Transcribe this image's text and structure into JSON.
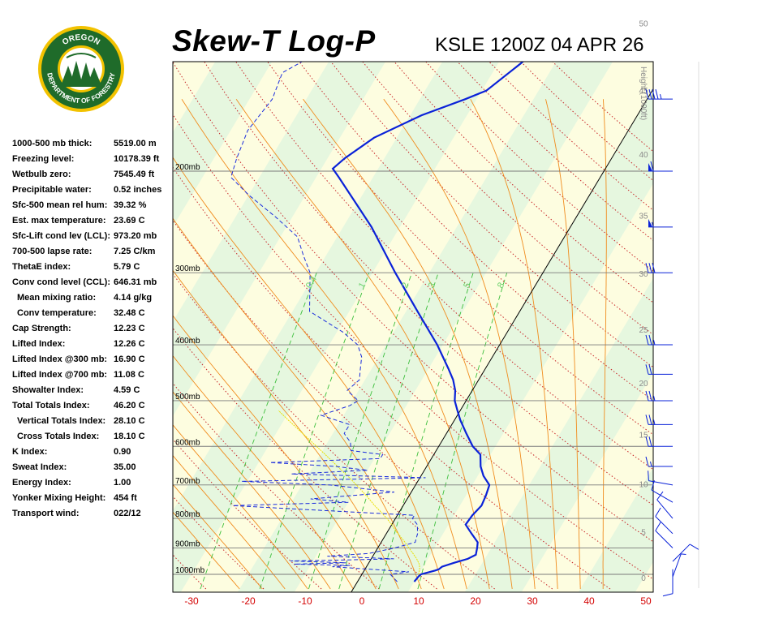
{
  "header": {
    "title": "Skew-T Log-P",
    "subtitle": "KSLE 1200Z 04 APR 26"
  },
  "logo": {
    "text_top": "OREGON",
    "text_bottom": "DEPARTMENT OF FORESTRY",
    "ring_color": "#1f6b2a",
    "accent_color": "#f2c200"
  },
  "indices": [
    {
      "label": "1000-500 mb thick:",
      "value": "5519.00 m",
      "indent": false
    },
    {
      "label": "Freezing level:",
      "value": "10178.39 ft",
      "indent": false
    },
    {
      "label": "Wetbulb zero:",
      "value": "7545.49 ft",
      "indent": false
    },
    {
      "label": "Precipitable water:",
      "value": "0.52 inches",
      "indent": false
    },
    {
      "label": "Sfc-500 mean rel hum:",
      "value": "39.32 %",
      "indent": false
    },
    {
      "label": "Est. max temperature:",
      "value": "23.69 C",
      "indent": false
    },
    {
      "label": "Sfc-Lift cond lev (LCL):",
      "value": "973.20 mb",
      "indent": false
    },
    {
      "label": "700-500 lapse rate:",
      "value": "7.25 C/km",
      "indent": false
    },
    {
      "label": "ThetaE index:",
      "value": "5.79 C",
      "indent": false
    },
    {
      "label": "Conv cond level (CCL):",
      "value": "646.31 mb",
      "indent": false
    },
    {
      "label": "Mean mixing ratio:",
      "value": "4.14 g/kg",
      "indent": true
    },
    {
      "label": "Conv temperature:",
      "value": "32.48 C",
      "indent": true
    },
    {
      "label": "Cap Strength:",
      "value": "12.23 C",
      "indent": false
    },
    {
      "label": "Lifted Index:",
      "value": "12.26 C",
      "indent": false
    },
    {
      "label": "Lifted Index @300 mb:",
      "value": "16.90 C",
      "indent": false
    },
    {
      "label": "Lifted Index @700 mb:",
      "value": "11.08 C",
      "indent": false
    },
    {
      "label": "Showalter Index:",
      "value": "4.59 C",
      "indent": false
    },
    {
      "label": "Total Totals Index:",
      "value": "46.20 C",
      "indent": false
    },
    {
      "label": "Vertical Totals Index:",
      "value": "28.10 C",
      "indent": true
    },
    {
      "label": "Cross Totals Index:",
      "value": "18.10 C",
      "indent": true
    },
    {
      "label": "K Index:",
      "value": "0.90",
      "indent": false
    },
    {
      "label": "Sweat Index:",
      "value": "35.00",
      "indent": false
    },
    {
      "label": "Energy Index:",
      "value": "1.00",
      "indent": false
    },
    {
      "label": "Yonker Mixing Height:",
      "value": "454 ft",
      "indent": false
    },
    {
      "label": "Transport wind:",
      "value": "022/12",
      "indent": false
    }
  ],
  "chart_data": {
    "type": "skew-t",
    "x_ticks": [
      "-30",
      "-20",
      "-10",
      "0",
      "10",
      "20",
      "30",
      "40",
      "50"
    ],
    "x_tick_values": [
      -30,
      -20,
      -10,
      0,
      10,
      20,
      30,
      40,
      50
    ],
    "pressure_levels": [
      {
        "p": 200,
        "label": "200mb"
      },
      {
        "p": 300,
        "label": "300mb"
      },
      {
        "p": 400,
        "label": "400mb"
      },
      {
        "p": 500,
        "label": "500mb"
      },
      {
        "p": 600,
        "label": "600mb"
      },
      {
        "p": 700,
        "label": "700mb"
      },
      {
        "p": 800,
        "label": "800mb"
      },
      {
        "p": 900,
        "label": "900mb"
      },
      {
        "p": 1000,
        "label": "1000mb"
      }
    ],
    "height_axis_label": "Height (1000ft)",
    "height_ticks": [
      {
        "kft": 0,
        "label": "0"
      },
      {
        "kft": 5,
        "label": "5"
      },
      {
        "kft": 10,
        "label": "10"
      },
      {
        "kft": 15,
        "label": "15"
      },
      {
        "kft": 20,
        "label": "20"
      },
      {
        "kft": 25,
        "label": "25"
      },
      {
        "kft": 30,
        "label": "30"
      },
      {
        "kft": 35,
        "label": "35"
      },
      {
        "kft": 40,
        "label": "40"
      },
      {
        "kft": 45,
        "label": "45"
      },
      {
        "kft": 50,
        "label": "50"
      }
    ],
    "mixing_ratio_labels": [
      "0.4",
      "1",
      "2",
      "3",
      "5",
      "8"
    ],
    "temperature_profile": [
      [
        1030,
        10
      ],
      [
        1008,
        10.2
      ],
      [
        1000,
        10.4
      ],
      [
        985,
        12.5
      ],
      [
        980,
        13
      ],
      [
        970,
        13.3
      ],
      [
        955,
        15
      ],
      [
        940,
        17
      ],
      [
        925,
        18
      ],
      [
        900,
        17.5
      ],
      [
        880,
        17
      ],
      [
        850,
        15
      ],
      [
        820,
        13
      ],
      [
        790,
        13.2
      ],
      [
        760,
        13.8
      ],
      [
        730,
        13.5
      ],
      [
        700,
        13
      ],
      [
        675,
        11
      ],
      [
        650,
        9.5
      ],
      [
        620,
        8.2
      ],
      [
        600,
        6
      ],
      [
        570,
        3.5
      ],
      [
        540,
        1
      ],
      [
        520,
        -0.5
      ],
      [
        500,
        -2
      ],
      [
        480,
        -3
      ],
      [
        460,
        -4.5
      ],
      [
        440,
        -6.5
      ],
      [
        400,
        -11
      ],
      [
        350,
        -18
      ],
      [
        300,
        -26
      ],
      [
        250,
        -35
      ],
      [
        205,
        -46
      ],
      [
        198,
        -48
      ],
      [
        190,
        -47
      ],
      [
        175,
        -44
      ],
      [
        160,
        -38
      ],
      [
        150,
        -32
      ],
      [
        145,
        -29.2
      ],
      [
        130,
        -26
      ],
      [
        120,
        -24
      ]
    ],
    "dewpoint_profile": [
      [
        1030,
        7
      ],
      [
        1000,
        5
      ],
      [
        990,
        8
      ],
      [
        980,
        1
      ],
      [
        970,
        -6
      ],
      [
        965,
        -3
      ],
      [
        960,
        -13
      ],
      [
        955,
        -4
      ],
      [
        948,
        -14
      ],
      [
        945,
        -6
      ],
      [
        940,
        4
      ],
      [
        930,
        -8
      ],
      [
        920,
        -1
      ],
      [
        900,
        3
      ],
      [
        880,
        6
      ],
      [
        850,
        5.5
      ],
      [
        820,
        4.5
      ],
      [
        800,
        3
      ],
      [
        790,
        3
      ],
      [
        780,
        -8
      ],
      [
        760,
        -30
      ],
      [
        750,
        -10
      ],
      [
        740,
        -17
      ],
      [
        720,
        -3
      ],
      [
        700,
        -15
      ],
      [
        690,
        -31
      ],
      [
        680,
        1
      ],
      [
        670,
        -23
      ],
      [
        660,
        -10
      ],
      [
        650,
        -16
      ],
      [
        640,
        -28
      ],
      [
        630,
        -9
      ],
      [
        620,
        -9
      ],
      [
        610,
        -15
      ],
      [
        590,
        -16
      ],
      [
        570,
        -18
      ],
      [
        550,
        -18
      ],
      [
        530,
        -24
      ],
      [
        510,
        -20
      ],
      [
        500,
        -19
      ],
      [
        480,
        -22
      ],
      [
        460,
        -21
      ],
      [
        440,
        -22
      ],
      [
        420,
        -23
      ],
      [
        400,
        -25
      ],
      [
        380,
        -29
      ],
      [
        350,
        -37
      ],
      [
        300,
        -41
      ],
      [
        280,
        -44
      ],
      [
        260,
        -47
      ],
      [
        240,
        -53
      ],
      [
        220,
        -60
      ],
      [
        205,
        -65
      ],
      [
        190,
        -66
      ],
      [
        170,
        -67
      ],
      [
        150,
        -66
      ],
      [
        135,
        -67
      ],
      [
        125,
        -63
      ]
    ],
    "parcel_path": [
      [
        1000,
        10
      ],
      [
        975,
        9.5
      ],
      [
        960,
        9
      ],
      [
        940,
        8
      ],
      [
        920,
        6.8
      ],
      [
        900,
        5.5
      ],
      [
        880,
        4.2
      ],
      [
        860,
        2.8
      ],
      [
        840,
        1.3
      ],
      [
        820,
        0
      ],
      [
        800,
        -1.5
      ],
      [
        780,
        -3.2
      ],
      [
        760,
        -5
      ],
      [
        740,
        -6.7
      ],
      [
        720,
        -8.5
      ],
      [
        700,
        -10.4
      ],
      [
        680,
        -12.4
      ],
      [
        660,
        -14.6
      ],
      [
        640,
        -16.8
      ],
      [
        620,
        -19.1
      ],
      [
        600,
        -21.5
      ],
      [
        580,
        -24
      ],
      [
        560,
        -26.6
      ],
      [
        540,
        -29.3
      ],
      [
        520,
        -32
      ]
    ],
    "wind_barbs": [
      {
        "p": 1010,
        "dir": 20,
        "kt": 5
      },
      {
        "p": 980,
        "dir": 180,
        "kt": 10
      },
      {
        "p": 950,
        "dir": 45,
        "kt": 10
      },
      {
        "p": 900,
        "dir": 315,
        "kt": 10
      },
      {
        "p": 850,
        "dir": 315,
        "kt": 10
      },
      {
        "p": 800,
        "dir": 320,
        "kt": 10
      },
      {
        "p": 750,
        "dir": 300,
        "kt": 10
      },
      {
        "p": 700,
        "dir": 280,
        "kt": 10
      },
      {
        "p": 650,
        "dir": 270,
        "kt": 15
      },
      {
        "p": 600,
        "dir": 270,
        "kt": 20
      },
      {
        "p": 550,
        "dir": 270,
        "kt": 25
      },
      {
        "p": 500,
        "dir": 270,
        "kt": 25
      },
      {
        "p": 450,
        "dir": 270,
        "kt": 20
      },
      {
        "p": 400,
        "dir": 270,
        "kt": 25
      },
      {
        "p": 300,
        "dir": 270,
        "kt": 30
      },
      {
        "p": 250,
        "dir": 270,
        "kt": 55
      },
      {
        "p": 200,
        "dir": 270,
        "kt": 60
      },
      {
        "p": 150,
        "dir": 270,
        "kt": 45
      }
    ]
  }
}
